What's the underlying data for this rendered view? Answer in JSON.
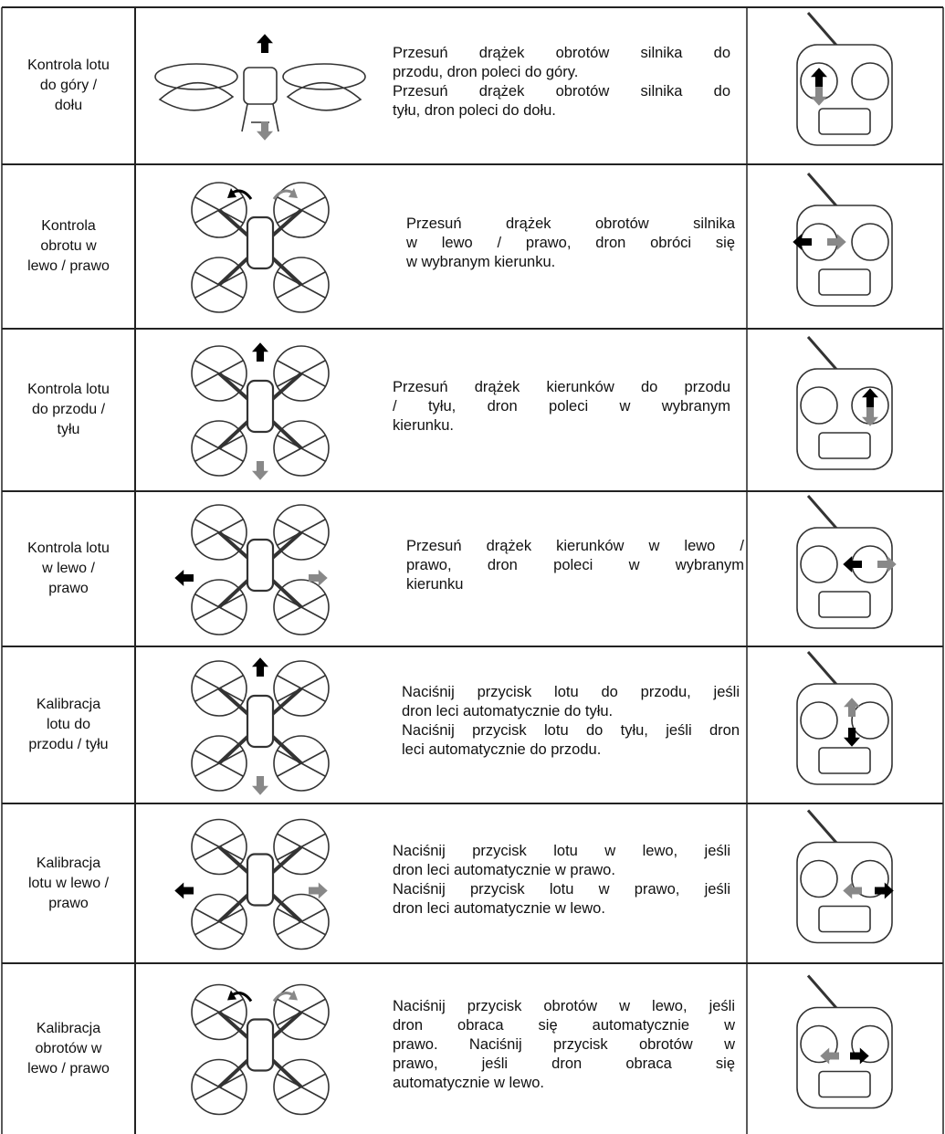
{
  "table": {
    "rows": [
      {
        "label": [
          "Kontrola lotu",
          "do góry /",
          "dołu"
        ],
        "description": [
          "Przesuń drążek obrotów silnika do",
          "przodu, dron poleci do góry.",
          "Przesuń drążek obrotów silnika do",
          "tyłu, dron poleci do dołu."
        ]
      },
      {
        "label": [
          "Kontrola",
          "obrotu w",
          "lewo / prawo"
        ],
        "description": [
          "Przesuń drążek obrotów silnika",
          "w lewo / prawo, dron obróci się",
          "w wybranym kierunku."
        ]
      },
      {
        "label": [
          "Kontrola lotu",
          "do przodu /",
          "tyłu"
        ],
        "description": [
          "Przesuń drążek kierunków do przodu",
          "/ tyłu, dron poleci w wybranym",
          "kierunku."
        ]
      },
      {
        "label": [
          "Kontrola lotu",
          "w lewo /",
          "prawo"
        ],
        "description": [
          "Przesuń drążek kierunków w lewo /",
          "prawo, dron poleci w wybranym",
          "kierunku"
        ]
      },
      {
        "label": [
          "Kalibracja",
          "lotu do",
          "przodu / tyłu"
        ],
        "description": [
          "Naciśnij przycisk lotu do przodu, jeśli",
          "dron leci automatycznie do tyłu.",
          "Naciśnij przycisk lotu do tyłu, jeśli dron",
          "leci automatycznie do przodu."
        ]
      },
      {
        "label": [
          "Kalibracja",
          "lotu w lewo /",
          "prawo"
        ],
        "description": [
          "Naciśnij przycisk lotu w lewo, jeśli",
          "dron leci automatycznie w prawo.",
          "Naciśnij przycisk lotu w prawo, jeśli",
          "dron leci automatycznie w lewo."
        ]
      },
      {
        "label": [
          "Kalibracja",
          "obrotów w",
          "lewo / prawo"
        ],
        "description": [
          "Naciśnij przycisk obrotów w lewo, jeśli",
          "dron obraca się automatycznie w",
          "prawo. Naciśnij przycisk obrotów w",
          "prawo, jeśli dron obraca się",
          "automatycznie w lewo."
        ]
      }
    ]
  }
}
